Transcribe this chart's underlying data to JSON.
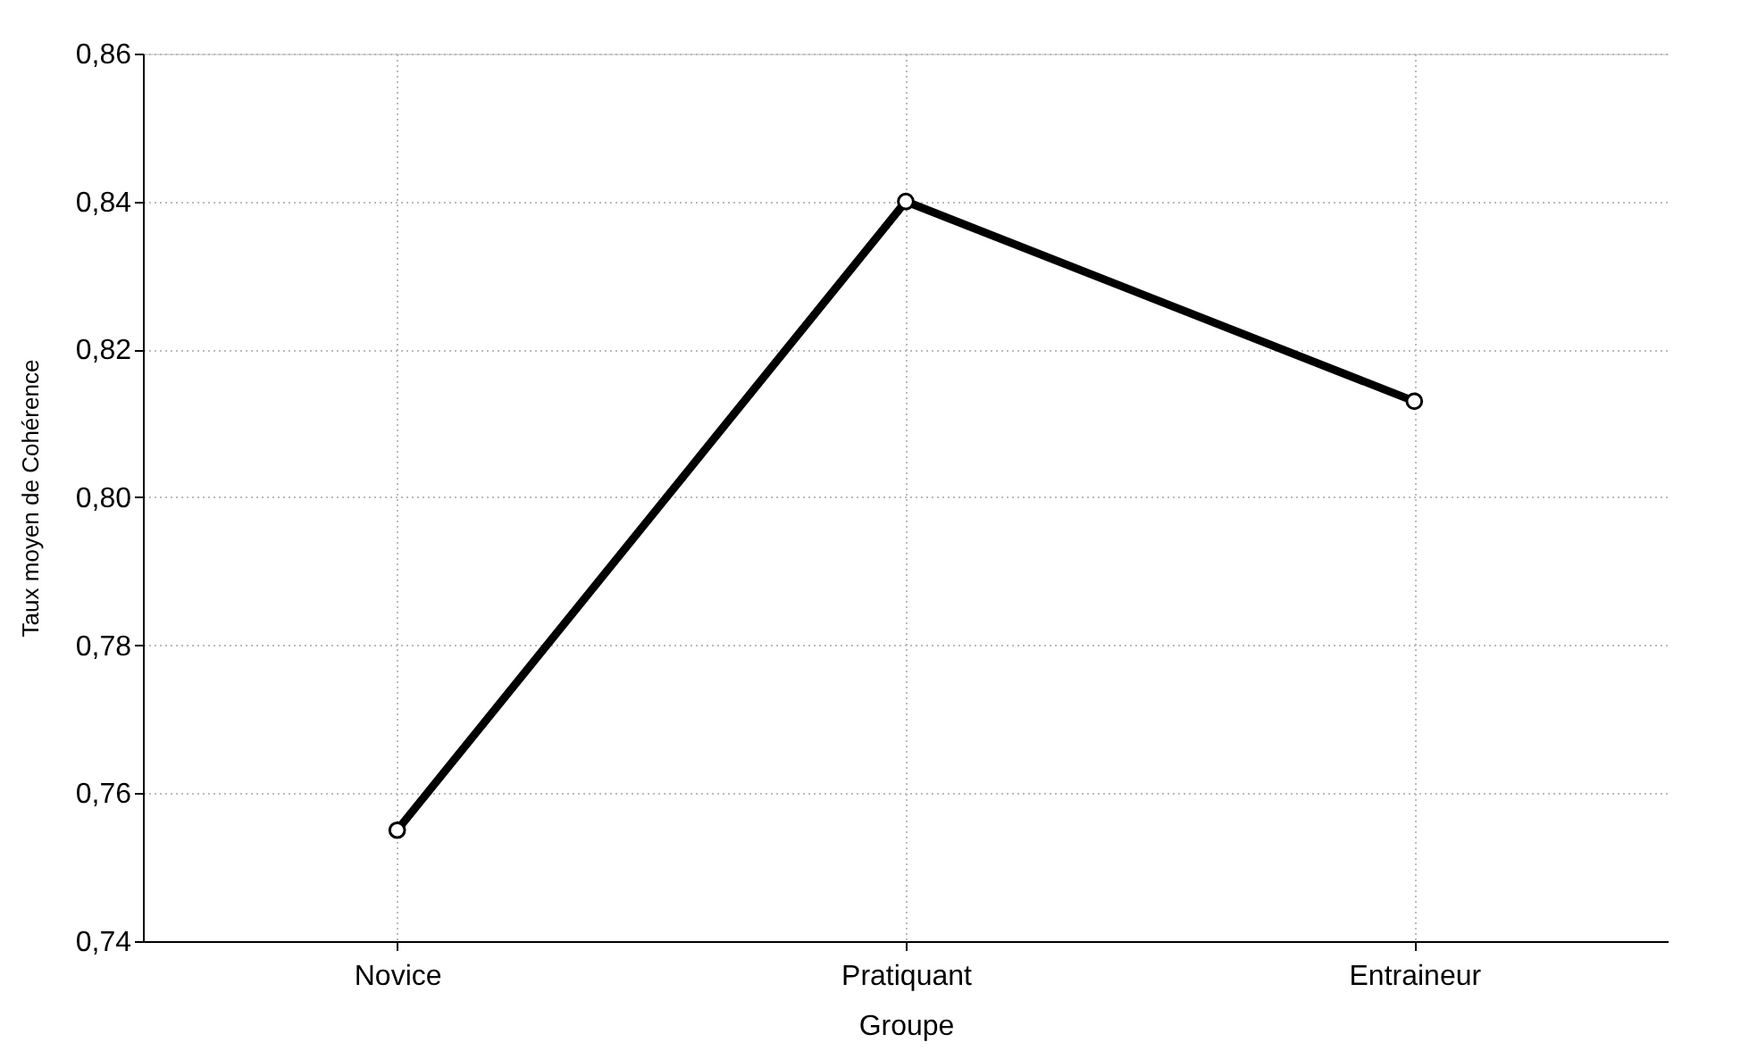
{
  "chart_data": {
    "type": "line",
    "xlabel": "Groupe",
    "ylabel": "Taux moyen de Cohérence",
    "categories": [
      "Novice",
      "Pratiquant",
      "Entraineur"
    ],
    "series": [
      {
        "color": "#000000",
        "values": [
          0.755,
          0.84,
          0.813
        ]
      }
    ],
    "ylim": [
      0.74,
      0.86
    ],
    "yticks": [
      {
        "value": 0.74,
        "label": "0,74"
      },
      {
        "value": 0.76,
        "label": "0,76"
      },
      {
        "value": 0.78,
        "label": "0,78"
      },
      {
        "value": 0.8,
        "label": "0,80"
      },
      {
        "value": 0.82,
        "label": "0,82"
      },
      {
        "value": 0.84,
        "label": "0,84"
      },
      {
        "value": 0.86,
        "label": "0,86"
      }
    ],
    "grid": true,
    "marker": "circle",
    "line_style": "solid"
  }
}
